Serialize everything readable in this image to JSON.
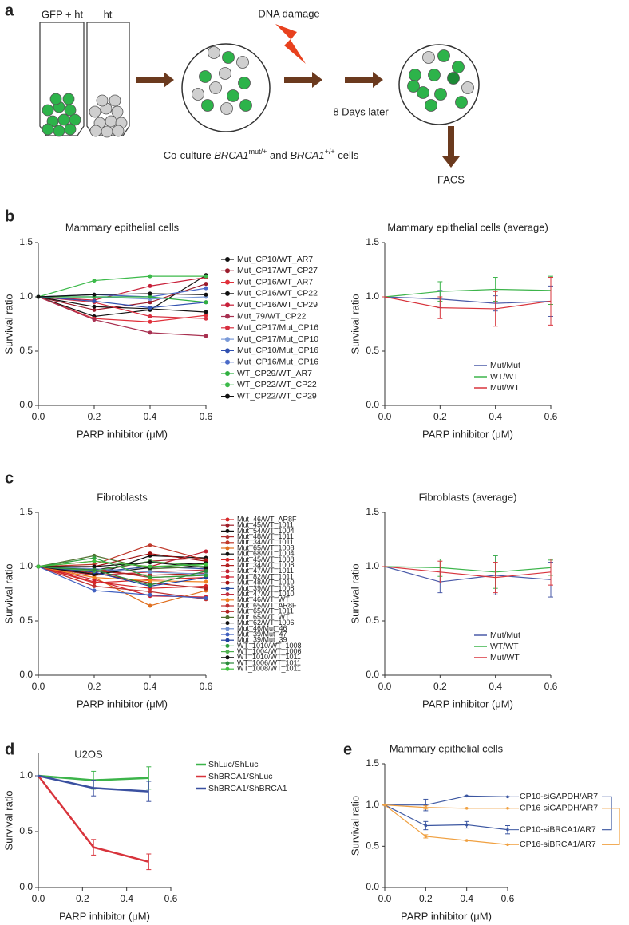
{
  "panel_labels": [
    "a",
    "b",
    "c",
    "d",
    "e"
  ],
  "diagram": {
    "tube_1": "GFP + ht",
    "tube_2": "ht",
    "damage": "DNA damage",
    "later": "8 Days later",
    "coculture": [
      "Co-culture ",
      "BRCA1",
      "mut/+",
      " and ",
      "BRCA1",
      "+/+",
      " cells"
    ],
    "facs": "FACS"
  },
  "chart_data": [
    {
      "type": "line",
      "title": "Mammary epithelial cells",
      "x_label": "PARP inhibitor (μM)",
      "y_label": "Survival ratio",
      "x": [
        0,
        0.2,
        0.4,
        0.6
      ],
      "xlim": [
        0,
        0.6
      ],
      "ylim": [
        0,
        1.5
      ],
      "xticks": [
        {
          "value": 0,
          "label": "0.0"
        },
        0.2,
        0.4,
        0.6
      ],
      "yticks": [
        {
          "value": 0,
          "label": "0.0"
        },
        0.5,
        {
          "value": 1,
          "label": "1.0"
        },
        1.5
      ],
      "legend": "outside right",
      "series": [
        {
          "name": "Mut_CP10/WT_AR7",
          "color": "#111111",
          "values": [
            1,
            0.82,
            0.88,
            1.2
          ]
        },
        {
          "name": "Mut_CP17/WT_CP27",
          "color": "#9b1c2c",
          "values": [
            1,
            0.88,
            0.95,
            1.12
          ]
        },
        {
          "name": "Mut_CP16/WT_AR7",
          "color": "#e0303a",
          "values": [
            1,
            0.8,
            0.77,
            0.83
          ]
        },
        {
          "name": "Mut_CP16/WT_CP22",
          "color": "#111111",
          "values": [
            1,
            0.91,
            0.89,
            0.86
          ]
        },
        {
          "name": "Mut_CP16/WT_CP29",
          "color": "#c8203a",
          "values": [
            1,
            0.97,
            1.1,
            1.18
          ]
        },
        {
          "name": "Mut_79/WT_CP22",
          "color": "#a83050",
          "values": [
            1,
            0.79,
            0.67,
            0.64
          ]
        },
        {
          "name": "Mut_CP17/Mut_CP16",
          "color": "#d83040",
          "values": [
            1,
            0.95,
            0.82,
            0.8
          ]
        },
        {
          "name": "Mut_CP17/Mut_CP10",
          "color": "#7a9ad8",
          "values": [
            1,
            1.0,
            0.98,
            1.0
          ]
        },
        {
          "name": "Mut_CP10/Mut_CP16",
          "color": "#3050b0",
          "values": [
            1,
            0.96,
            0.9,
            0.95
          ]
        },
        {
          "name": "Mut_CP16/Mut_CP16",
          "color": "#4a6ac8",
          "values": [
            1,
            1.02,
            1.0,
            1.08
          ]
        },
        {
          "name": "WT_CP29/WT_AR7",
          "color": "#30b040",
          "values": [
            1,
            1.0,
            1.0,
            0.95
          ]
        },
        {
          "name": "WT_CP22/WT_CP22",
          "color": "#3cba4a",
          "values": [
            1,
            1.15,
            1.19,
            1.19
          ]
        },
        {
          "name": "WT_CP22/WT_CP29",
          "color": "#111111",
          "values": [
            1,
            1.02,
            1.03,
            1.02
          ]
        }
      ]
    },
    {
      "type": "line",
      "title": "Mammary epithelial cells (average)",
      "x_label": "PARP inhibitor (μM)",
      "y_label": "Survival ratio",
      "x": [
        0,
        0.2,
        0.4,
        0.6
      ],
      "xlim": [
        0,
        0.6
      ],
      "ylim": [
        0,
        1.5
      ],
      "xticks": [
        {
          "value": 0,
          "label": "0.0"
        },
        0.2,
        0.4,
        0.6
      ],
      "yticks": [
        {
          "value": 0,
          "label": "0.0"
        },
        0.5,
        {
          "value": 1,
          "label": "1.0"
        },
        1.5
      ],
      "legend": "lower right",
      "series": [
        {
          "name": "Mut/Mut",
          "color": "#4a5aa8",
          "values": [
            1,
            0.98,
            0.94,
            0.96
          ],
          "errors": [
            0,
            0.08,
            0.07,
            0.14
          ]
        },
        {
          "name": "WT/WT",
          "color": "#3cb44a",
          "values": [
            1,
            1.05,
            1.07,
            1.06
          ],
          "errors": [
            0,
            0.09,
            0.11,
            0.13
          ]
        },
        {
          "name": "Mut/WT",
          "color": "#d8343c",
          "values": [
            1,
            0.9,
            0.89,
            0.96
          ],
          "errors": [
            0,
            0.1,
            0.16,
            0.22
          ]
        }
      ]
    },
    {
      "type": "line",
      "title": "Fibroblasts",
      "x_label": "PARP inhibitor (μM)",
      "y_label": "Survival ratio",
      "x": [
        0,
        0.2,
        0.4,
        0.6
      ],
      "xlim": [
        0,
        0.6
      ],
      "ylim": [
        0,
        1.5
      ],
      "xticks": [
        {
          "value": 0,
          "label": "0.0"
        },
        0.2,
        0.4,
        0.6
      ],
      "yticks": [
        {
          "value": 0,
          "label": "0.0"
        },
        0.5,
        {
          "value": 1,
          "label": "1.0"
        },
        1.5
      ],
      "legend": "outside right",
      "series": [
        {
          "name": "Mut_46/WT_AR8F",
          "color": "#d62728",
          "values": [
            1,
            0.86,
            0.8,
            0.82
          ]
        },
        {
          "name": "Mut_45/WT_1011",
          "color": "#a0202a",
          "values": [
            1,
            0.95,
            1.05,
            1.08
          ]
        },
        {
          "name": "Mut_54/WT_1004",
          "color": "#111111",
          "values": [
            1,
            0.92,
            1.1,
            1.08
          ]
        },
        {
          "name": "Mut_48/WT_1011",
          "color": "#b03030",
          "values": [
            1,
            0.98,
            0.9,
            0.92
          ]
        },
        {
          "name": "Mut_34/WT_1011",
          "color": "#c0392b",
          "values": [
            1,
            1.02,
            1.2,
            1.06
          ]
        },
        {
          "name": "Mut_65/WT_1008",
          "color": "#e07020",
          "values": [
            1,
            0.9,
            0.64,
            0.78
          ]
        },
        {
          "name": "Mut_68/WT_1004",
          "color": "#111111",
          "values": [
            1,
            0.97,
            1.04,
            1.02
          ]
        },
        {
          "name": "Mut_45/WT_1008",
          "color": "#d62728",
          "values": [
            1,
            0.85,
            0.88,
            0.9
          ]
        },
        {
          "name": "Mut_34/WT_1008",
          "color": "#b22222",
          "values": [
            1,
            0.94,
            0.85,
            0.8
          ]
        },
        {
          "name": "Mut_47/WT_1011",
          "color": "#c02030",
          "values": [
            1,
            1.05,
            1.0,
            1.14
          ]
        },
        {
          "name": "Mut_82/WT_1011",
          "color": "#d02030",
          "values": [
            1,
            0.88,
            0.73,
            0.72
          ]
        },
        {
          "name": "Mut_48/WT_1010",
          "color": "#a01010",
          "values": [
            1,
            1.0,
            1.12,
            1.05
          ]
        },
        {
          "name": "Mut_39/WT_1008",
          "color": "#3050a0",
          "values": [
            1,
            0.95,
            1.0,
            0.98
          ]
        },
        {
          "name": "Mut_47/WT_1010",
          "color": "#c03040",
          "values": [
            1,
            0.92,
            0.95,
            0.97
          ]
        },
        {
          "name": "Mut_46/WT_WT",
          "color": "#f08020",
          "values": [
            1,
            0.9,
            0.87,
            0.86
          ]
        },
        {
          "name": "Mut_65/WT_AR8F",
          "color": "#c03030",
          "values": [
            1,
            0.82,
            0.77,
            0.7
          ]
        },
        {
          "name": "Mut_65/WT_1011",
          "color": "#b02020",
          "values": [
            1,
            0.96,
            0.92,
            0.94
          ]
        },
        {
          "name": "Mut_65/WT_WT",
          "color": "#507030",
          "values": [
            1,
            1.1,
            0.98,
            1.0
          ]
        },
        {
          "name": "Mut_62/WT_1006",
          "color": "#111111",
          "values": [
            1,
            0.93,
            0.99,
            1.03
          ]
        },
        {
          "name": "Mut_46/Mut_46",
          "color": "#7090d0",
          "values": [
            1,
            0.98,
            0.95,
            0.93
          ]
        },
        {
          "name": "Mut_39/Mut_47",
          "color": "#4060c0",
          "values": [
            1,
            0.78,
            0.74,
            0.71
          ]
        },
        {
          "name": "Mut_39/Mut_39",
          "color": "#2040a0",
          "values": [
            1,
            0.95,
            0.82,
            0.9
          ]
        },
        {
          "name": "WT_1010/WT_1008",
          "color": "#30a040",
          "values": [
            1,
            1.08,
            0.9,
            0.92
          ]
        },
        {
          "name": "WT_1004/WT_1006",
          "color": "#50b050",
          "values": [
            1,
            0.96,
            1.05,
            1.0
          ]
        },
        {
          "name": "WT_1010/WT_1011",
          "color": "#111111",
          "values": [
            1,
            1.0,
            1.04,
            0.99
          ]
        },
        {
          "name": "WT_1006/WT_1011",
          "color": "#2a8a3a",
          "values": [
            1,
            0.97,
            0.83,
            0.96
          ]
        },
        {
          "name": "WT_1008/WT_1011",
          "color": "#40c040",
          "values": [
            1,
            1.05,
            1.0,
            1.02
          ]
        }
      ]
    },
    {
      "type": "line",
      "title": "Fibroblasts (average)",
      "x_label": "PARP inhibitor (μM)",
      "y_label": "Survival ratio",
      "x": [
        0,
        0.2,
        0.4,
        0.6
      ],
      "xlim": [
        0,
        0.6
      ],
      "ylim": [
        0,
        1.5
      ],
      "xticks": [
        {
          "value": 0,
          "label": "0.0"
        },
        0.2,
        0.4,
        0.6
      ],
      "yticks": [
        {
          "value": 0,
          "label": "0.0"
        },
        0.5,
        {
          "value": 1,
          "label": "1.0"
        },
        1.5
      ],
      "legend": "lower right",
      "series": [
        {
          "name": "Mut/Mut",
          "color": "#4a5aa8",
          "values": [
            1,
            0.86,
            0.92,
            0.88
          ],
          "errors": [
            0,
            0.1,
            0.18,
            0.16
          ]
        },
        {
          "name": "WT/WT",
          "color": "#3cb44a",
          "values": [
            1,
            0.99,
            0.95,
            0.99
          ],
          "errors": [
            0,
            0.08,
            0.15,
            0.07
          ]
        },
        {
          "name": "Mut/WT",
          "color": "#d8343c",
          "values": [
            1,
            0.95,
            0.9,
            0.95
          ],
          "errors": [
            0,
            0.1,
            0.14,
            0.12
          ]
        }
      ]
    },
    {
      "type": "line",
      "title": "U2OS",
      "x_label": "PARP inhibitor (μM)",
      "y_label": "Survival ratio",
      "x": [
        0,
        0.25,
        0.5
      ],
      "xlim": [
        0,
        0.6
      ],
      "ylim": [
        0,
        1.2
      ],
      "xticks": [
        {
          "value": 0,
          "label": "0.0"
        },
        0.2,
        0.4,
        0.6
      ],
      "yticks": [
        {
          "value": 0,
          "label": "0.0"
        },
        0.5,
        {
          "value": 1,
          "label": "1.0"
        }
      ],
      "legend": "upper right",
      "series": [
        {
          "name": "ShLuc/ShLuc",
          "color": "#3cb44a",
          "values": [
            1,
            0.96,
            0.98
          ],
          "errors": [
            0,
            0.08,
            0.1
          ]
        },
        {
          "name": "ShBRCA1/ShLuc",
          "color": "#d8343c",
          "values": [
            1,
            0.36,
            0.23
          ],
          "errors": [
            0,
            0.07,
            0.07
          ]
        },
        {
          "name": "ShBRCA1/ShBRCA1",
          "color": "#3a50a0",
          "values": [
            1,
            0.89,
            0.86
          ],
          "errors": [
            0,
            0.07,
            0.09
          ]
        }
      ]
    },
    {
      "type": "line",
      "title": "Mammary epithelial cells",
      "x_label": "PARP inhibitor (μM)",
      "y_label": "Survival ratio",
      "x": [
        0,
        0.2,
        0.4,
        0.6
      ],
      "xlim": [
        0,
        0.6
      ],
      "ylim": [
        0,
        1.5
      ],
      "xticks": [
        {
          "value": 0,
          "label": "0.0"
        },
        0.2,
        0.4,
        0.6
      ],
      "yticks": [
        {
          "value": 0,
          "label": "0.0"
        },
        0.5,
        {
          "value": 1,
          "label": "1.0"
        },
        1.5
      ],
      "legend": "line ends",
      "series": [
        {
          "name": "CP10-siGAPDH/AR7",
          "color": "#3a55a0",
          "values": [
            1,
            1.0,
            1.11,
            1.1
          ],
          "errors": [
            0,
            0.07,
            0,
            0
          ]
        },
        {
          "name": "CP16-siGAPDH/AR7",
          "color": "#f0a040",
          "values": [
            1,
            0.97,
            0.96,
            0.96
          ],
          "errors": [
            0,
            0.02,
            0,
            0
          ]
        },
        {
          "name": "CP10-siBRCA1/AR7",
          "color": "#3a55a0",
          "values": [
            1,
            0.75,
            0.76,
            0.7
          ],
          "errors": [
            0,
            0.05,
            0.04,
            0.05
          ]
        },
        {
          "name": "CP16-siBRCA1/AR7",
          "color": "#f0a040",
          "values": [
            1,
            0.62,
            0.57,
            0.52
          ],
          "errors": [
            0,
            0.02,
            0,
            0
          ]
        }
      ]
    }
  ]
}
